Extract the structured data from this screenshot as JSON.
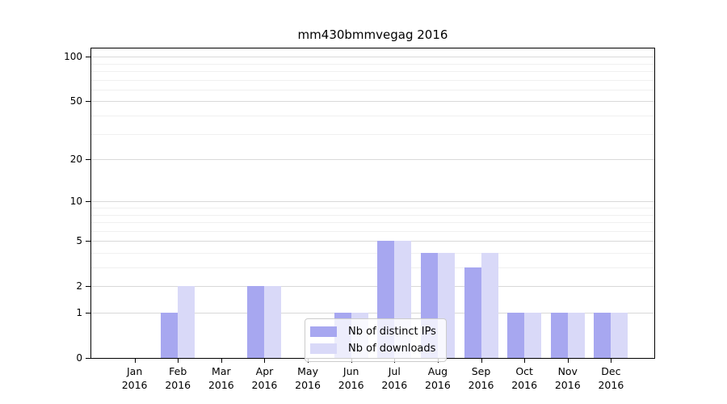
{
  "title": "mm430bmmvegag 2016",
  "chart_data": {
    "type": "bar",
    "title": "mm430bmmvegag 2016",
    "categories": [
      "Jan",
      "Feb",
      "Mar",
      "Apr",
      "May",
      "Jun",
      "Jul",
      "Aug",
      "Sep",
      "Oct",
      "Nov",
      "Dec"
    ],
    "category_year": "2016",
    "series": [
      {
        "name": "Nb of distinct IPs",
        "color": "#a7a7f0",
        "values": [
          0,
          1,
          0,
          2,
          0,
          1,
          5,
          4,
          3,
          1,
          1,
          1
        ]
      },
      {
        "name": "Nb of downloads",
        "color": "#d9d9f8",
        "values": [
          0,
          2,
          0,
          2,
          0,
          1,
          5,
          4,
          4,
          1,
          1,
          1
        ]
      }
    ],
    "yscale": "log1p",
    "y_tick_labels": [
      0,
      1,
      2,
      5,
      10,
      20,
      50,
      100
    ],
    "y_minor_gridlines": [
      3,
      4,
      6,
      7,
      8,
      9,
      30,
      40,
      60,
      70,
      80,
      90
    ],
    "ylim": [
      0,
      113.7
    ],
    "grid": "on",
    "legend_position": "bottom-center",
    "legend_entries": [
      "Nb of distinct IPs",
      "Nb of downloads"
    ]
  },
  "colors": {
    "background": "#ffffff",
    "axis": "#000000",
    "major_grid": "#d9d9d9",
    "minor_grid": "#f0f0f0",
    "legend_border": "#cccccc",
    "bar_distinct_ips": "#a7a7f0",
    "bar_downloads": "#d9d9f8"
  }
}
